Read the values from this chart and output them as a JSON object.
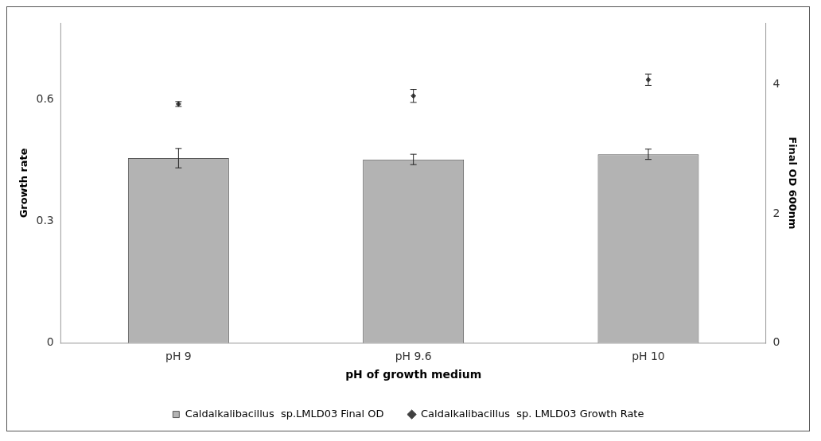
{
  "chart_data": {
    "type": "bar",
    "categories": [
      "pH 9",
      "pH 9.6",
      "pH 10"
    ],
    "xlabel": "pH of growth medium",
    "ylabel": "Growth rate",
    "y2label": "Final OD 600nm",
    "ylim": [
      0,
      0.79
    ],
    "yticks": [
      0,
      0.3,
      0.6
    ],
    "y2lim": [
      0,
      4.95
    ],
    "y2ticks": [
      0,
      2,
      4
    ],
    "grid": false,
    "legend": "bottom",
    "series": [
      {
        "name": "Caldalkalibacillus  sp.LMLD03 Final OD",
        "axis": "y2",
        "color": "#b3b3b3",
        "values": [
          2.86,
          2.84,
          2.92
        ],
        "errors": [
          0.15,
          0.08,
          0.08
        ]
      },
      {
        "name": "Caldalkalibacillus  sp. LMLD03 Growth Rate",
        "type": "scatter",
        "axis": "y",
        "marker": "diamond",
        "color": "#404040",
        "values": [
          0.59,
          0.61,
          0.65
        ],
        "errors": [
          0.006,
          0.016,
          0.014
        ]
      }
    ]
  }
}
